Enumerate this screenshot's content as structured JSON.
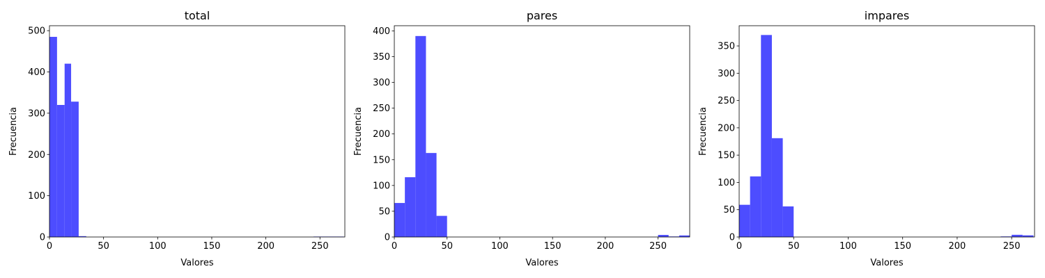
{
  "chart_data": [
    {
      "type": "bar",
      "title": "total",
      "xlabel": "Valores",
      "ylabel": "Frecuencia",
      "xlim": [
        0,
        273
      ],
      "ylim": [
        0,
        512
      ],
      "xticks": [
        0,
        50,
        100,
        150,
        200,
        250
      ],
      "yticks": [
        0,
        100,
        200,
        300,
        400,
        500
      ],
      "bin_edges": [
        0,
        7,
        14,
        20,
        27,
        34,
        244,
        251,
        258,
        265,
        272
      ],
      "values": [
        485,
        320,
        420,
        328,
        2,
        0,
        1,
        1,
        1,
        1
      ],
      "color": "#4d4dff"
    },
    {
      "type": "bar",
      "title": "pares",
      "xlabel": "Valores",
      "ylabel": "Frecuencia",
      "xlim": [
        0,
        280
      ],
      "ylim": [
        0,
        410
      ],
      "xticks": [
        0,
        50,
        100,
        150,
        200,
        250
      ],
      "yticks": [
        0,
        50,
        100,
        150,
        200,
        250,
        300,
        350,
        400
      ],
      "bin_edges": [
        0,
        10,
        20,
        30,
        40,
        50,
        250,
        260,
        270,
        280
      ],
      "values": [
        66,
        116,
        390,
        163,
        41,
        0,
        4,
        1,
        3
      ],
      "color": "#4d4dff"
    },
    {
      "type": "bar",
      "title": "impares",
      "xlabel": "Valores",
      "ylabel": "Frecuencia",
      "xlim": [
        0,
        271
      ],
      "ylim": [
        0,
        387
      ],
      "xticks": [
        0,
        50,
        100,
        150,
        200,
        250
      ],
      "yticks": [
        0,
        50,
        100,
        150,
        200,
        250,
        300,
        350
      ],
      "bin_edges": [
        0,
        10,
        20,
        30,
        40,
        50,
        240,
        250,
        260,
        270
      ],
      "values": [
        59,
        111,
        370,
        181,
        56,
        0,
        1,
        4,
        3
      ],
      "color": "#4d4dff"
    }
  ]
}
